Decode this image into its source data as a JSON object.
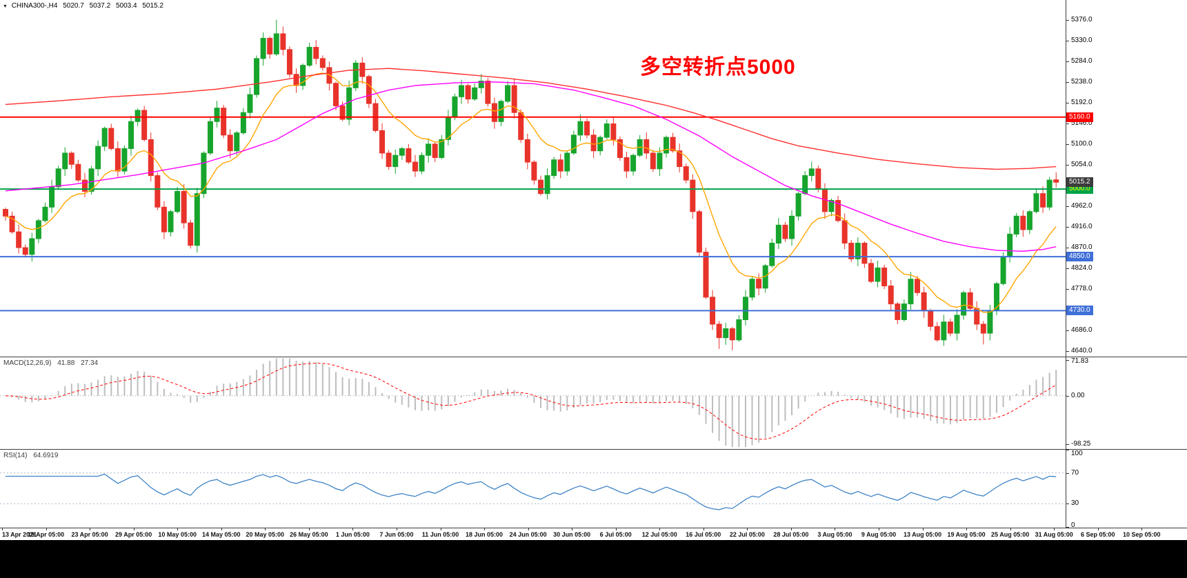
{
  "header": {
    "dropdown_icon": "▼",
    "symbol": "CHINA300-,H4",
    "open": "5020.7",
    "high": "5037.2",
    "low": "5003.4",
    "close": "5015.2"
  },
  "annotation": {
    "text": "多空转折点5000",
    "color": "#FF0000"
  },
  "colors": {
    "up": "#17A42C",
    "down": "#E8332A",
    "ma_fast": "#FFA500",
    "ma_mid": "#FF00FF",
    "ma_slow": "#FF2E2E",
    "macd_hist": "#BDBDBD",
    "macd_signal": "#FF0000",
    "macd_zero": "#999999",
    "rsi_line": "#3E83C6",
    "rsi_level": "#ADBACB",
    "current_tag_bg": "#3C3C3C",
    "current_tag_text": "#FFFFFF",
    "axis_text": "#000000"
  },
  "price_axis": {
    "ticks": [
      [
        "5376.0",
        5376
      ],
      [
        "5330.0",
        5330
      ],
      [
        "5284.0",
        5284
      ],
      [
        "5238.0",
        5238
      ],
      [
        "5192.0",
        5192
      ],
      [
        "5146.0",
        5146
      ],
      [
        "5100.0",
        5100
      ],
      [
        "5054.0",
        5054
      ],
      [
        "4962.0",
        4962
      ],
      [
        "4916.0",
        4916
      ],
      [
        "4870.0",
        4870
      ],
      [
        "4824.0",
        4824
      ],
      [
        "4778.0",
        4778
      ],
      [
        "4686.0",
        4686
      ],
      [
        "4640.0",
        4640
      ]
    ]
  },
  "current_price": {
    "label": "5015.2",
    "value": 5015.2
  },
  "macd_panel": {
    "name": "MACD(12,26,9)",
    "value1": "41.88",
    "value2": "27.34",
    "fast": 12,
    "slow": 26,
    "signal": 9,
    "axis": [
      [
        "71.83",
        71.83
      ],
      [
        "0.00",
        0
      ],
      [
        "-98.25",
        -98.25
      ]
    ],
    "range": [
      78,
      -108
    ]
  },
  "rsi_panel": {
    "name": "RSI(14)",
    "value": "64.6919",
    "period": 14,
    "axis": [
      [
        "100",
        100
      ],
      [
        "70",
        70
      ],
      [
        "30",
        30
      ],
      [
        "0",
        0
      ]
    ],
    "levels": [
      70,
      30
    ]
  },
  "chart_data": {
    "type": "candlestick",
    "symbol": "CHINA300",
    "timeframe": "H4",
    "title_annotation": "多空转折点5000",
    "visible_range": {
      "price_top": 5420,
      "price_bottom": 4628,
      "date_start": "13 Apr 2021",
      "date_end": "10 Sep 2021"
    },
    "first_open": 4955,
    "last_bar_ohlc": [
      5020.7,
      5037.2,
      5003.4,
      5015.2
    ],
    "closes": [
      4940,
      4905,
      4870,
      4855,
      4890,
      4930,
      4960,
      5005,
      5045,
      5080,
      5055,
      5020,
      4995,
      5045,
      5095,
      5135,
      5090,
      5040,
      5090,
      5150,
      5175,
      5110,
      5030,
      4960,
      4905,
      4950,
      4995,
      4925,
      4875,
      4990,
      5080,
      5150,
      5180,
      5120,
      5085,
      5125,
      5170,
      5210,
      5290,
      5335,
      5300,
      5345,
      5310,
      5255,
      5230,
      5275,
      5315,
      5290,
      5270,
      5235,
      5185,
      5155,
      5225,
      5280,
      5250,
      5190,
      5130,
      5080,
      5050,
      5075,
      5090,
      5060,
      5040,
      5075,
      5100,
      5070,
      5110,
      5160,
      5205,
      5230,
      5200,
      5225,
      5240,
      5190,
      5150,
      5195,
      5230,
      5170,
      5110,
      5060,
      5020,
      4990,
      5030,
      5065,
      5040,
      5080,
      5120,
      5150,
      5120,
      5085,
      5115,
      5145,
      5110,
      5070,
      5040,
      5075,
      5110,
      5080,
      5045,
      5080,
      5115,
      5085,
      5050,
      5020,
      4950,
      4860,
      4760,
      4700,
      4670,
      4690,
      4665,
      4710,
      4760,
      4800,
      4780,
      4830,
      4880,
      4920,
      4890,
      4940,
      4990,
      5030,
      5045,
      5000,
      4950,
      4975,
      4930,
      4880,
      4845,
      4880,
      4835,
      4795,
      4825,
      4785,
      4745,
      4710,
      4745,
      4800,
      4770,
      4730,
      4695,
      4665,
      4705,
      4680,
      4720,
      4770,
      4735,
      4700,
      4680,
      4730,
      4790,
      4850,
      4900,
      4940,
      4910,
      4950,
      4990,
      4960,
      5020,
      5015.2
    ],
    "wick_overrides": {
      "41": {
        "high": 5376.0
      },
      "108": {
        "low": 4645.0
      },
      "110": {
        "low": 4642.0
      },
      "148": {
        "low": 4655.0
      }
    },
    "h_lines": [
      {
        "price": 5160.0,
        "label": "5160.0",
        "color": "#FF0000",
        "text_color": "#FFFFFF"
      },
      {
        "price": 5000.0,
        "label": "5000.0",
        "color": "#00A24A",
        "text_color": "#FFFF00"
      },
      {
        "price": 4850.0,
        "label": "4850.0",
        "color": "#3F6FD8",
        "text_color": "#FFFFFF"
      },
      {
        "price": 4730.0,
        "label": "4730.0",
        "color": "#3F6FD8",
        "text_color": "#FFFFFF"
      }
    ],
    "ma_lines": [
      {
        "name": "ma-fast",
        "type": "ema",
        "period": 12,
        "color": "#FFA500"
      },
      {
        "name": "ma-mid",
        "type": "points",
        "color": "#FF00FF",
        "points": [
          [
            0,
            4996
          ],
          [
            10,
            5010
          ],
          [
            20,
            5032
          ],
          [
            30,
            5058
          ],
          [
            36,
            5085
          ],
          [
            41,
            5110
          ],
          [
            48,
            5168
          ],
          [
            53,
            5200
          ],
          [
            58,
            5220
          ],
          [
            62,
            5230
          ],
          [
            68,
            5236
          ],
          [
            74,
            5238
          ],
          [
            80,
            5234
          ],
          [
            86,
            5220
          ],
          [
            90,
            5205
          ],
          [
            95,
            5185
          ],
          [
            100,
            5155
          ],
          [
            105,
            5118
          ],
          [
            110,
            5072
          ],
          [
            114,
            5040
          ],
          [
            118,
            5008
          ],
          [
            122,
            4985
          ],
          [
            126,
            4968
          ],
          [
            130,
            4945
          ],
          [
            134,
            4922
          ],
          [
            138,
            4902
          ],
          [
            142,
            4884
          ],
          [
            146,
            4872
          ],
          [
            150,
            4864
          ],
          [
            154,
            4862
          ],
          [
            157,
            4866
          ],
          [
            159,
            4872
          ]
        ]
      },
      {
        "name": "ma-slow",
        "type": "points",
        "color": "#FF2E2E",
        "points": [
          [
            0,
            5188
          ],
          [
            8,
            5196
          ],
          [
            16,
            5205
          ],
          [
            24,
            5212
          ],
          [
            32,
            5222
          ],
          [
            40,
            5238
          ],
          [
            46,
            5252
          ],
          [
            52,
            5264
          ],
          [
            58,
            5268
          ],
          [
            64,
            5262
          ],
          [
            70,
            5254
          ],
          [
            76,
            5246
          ],
          [
            82,
            5236
          ],
          [
            88,
            5222
          ],
          [
            94,
            5205
          ],
          [
            100,
            5186
          ],
          [
            104,
            5170
          ],
          [
            108,
            5152
          ],
          [
            112,
            5132
          ],
          [
            116,
            5112
          ],
          [
            120,
            5096
          ],
          [
            126,
            5080
          ],
          [
            132,
            5066
          ],
          [
            138,
            5056
          ],
          [
            144,
            5048
          ],
          [
            150,
            5044
          ],
          [
            155,
            5046
          ],
          [
            159,
            5050
          ]
        ]
      }
    ],
    "time_labels": [
      "13 Apr 2021",
      "19 Apr 05:00",
      "23 Apr 05:00",
      "29 Apr 05:00",
      "10 May 05:00",
      "14 May 05:00",
      "20 May 05:00",
      "26 May 05:00",
      "1 Jun 05:00",
      "7 Jun 05:00",
      "11 Jun 05:00",
      "18 Jun 05:00",
      "24 Jun 05:00",
      "30 Jun 05:00",
      "6 Jul 05:00",
      "12 Jul 05:00",
      "16 Jul 05:00",
      "22 Jul 05:00",
      "28 Jul 05:00",
      "3 Aug 05:00",
      "9 Aug 05:00",
      "13 Aug 05:00",
      "19 Aug 05:00",
      "25 Aug 05:00",
      "31 Aug 05:00",
      "6 Sep 05:00",
      "10 Sep 05:00"
    ]
  }
}
